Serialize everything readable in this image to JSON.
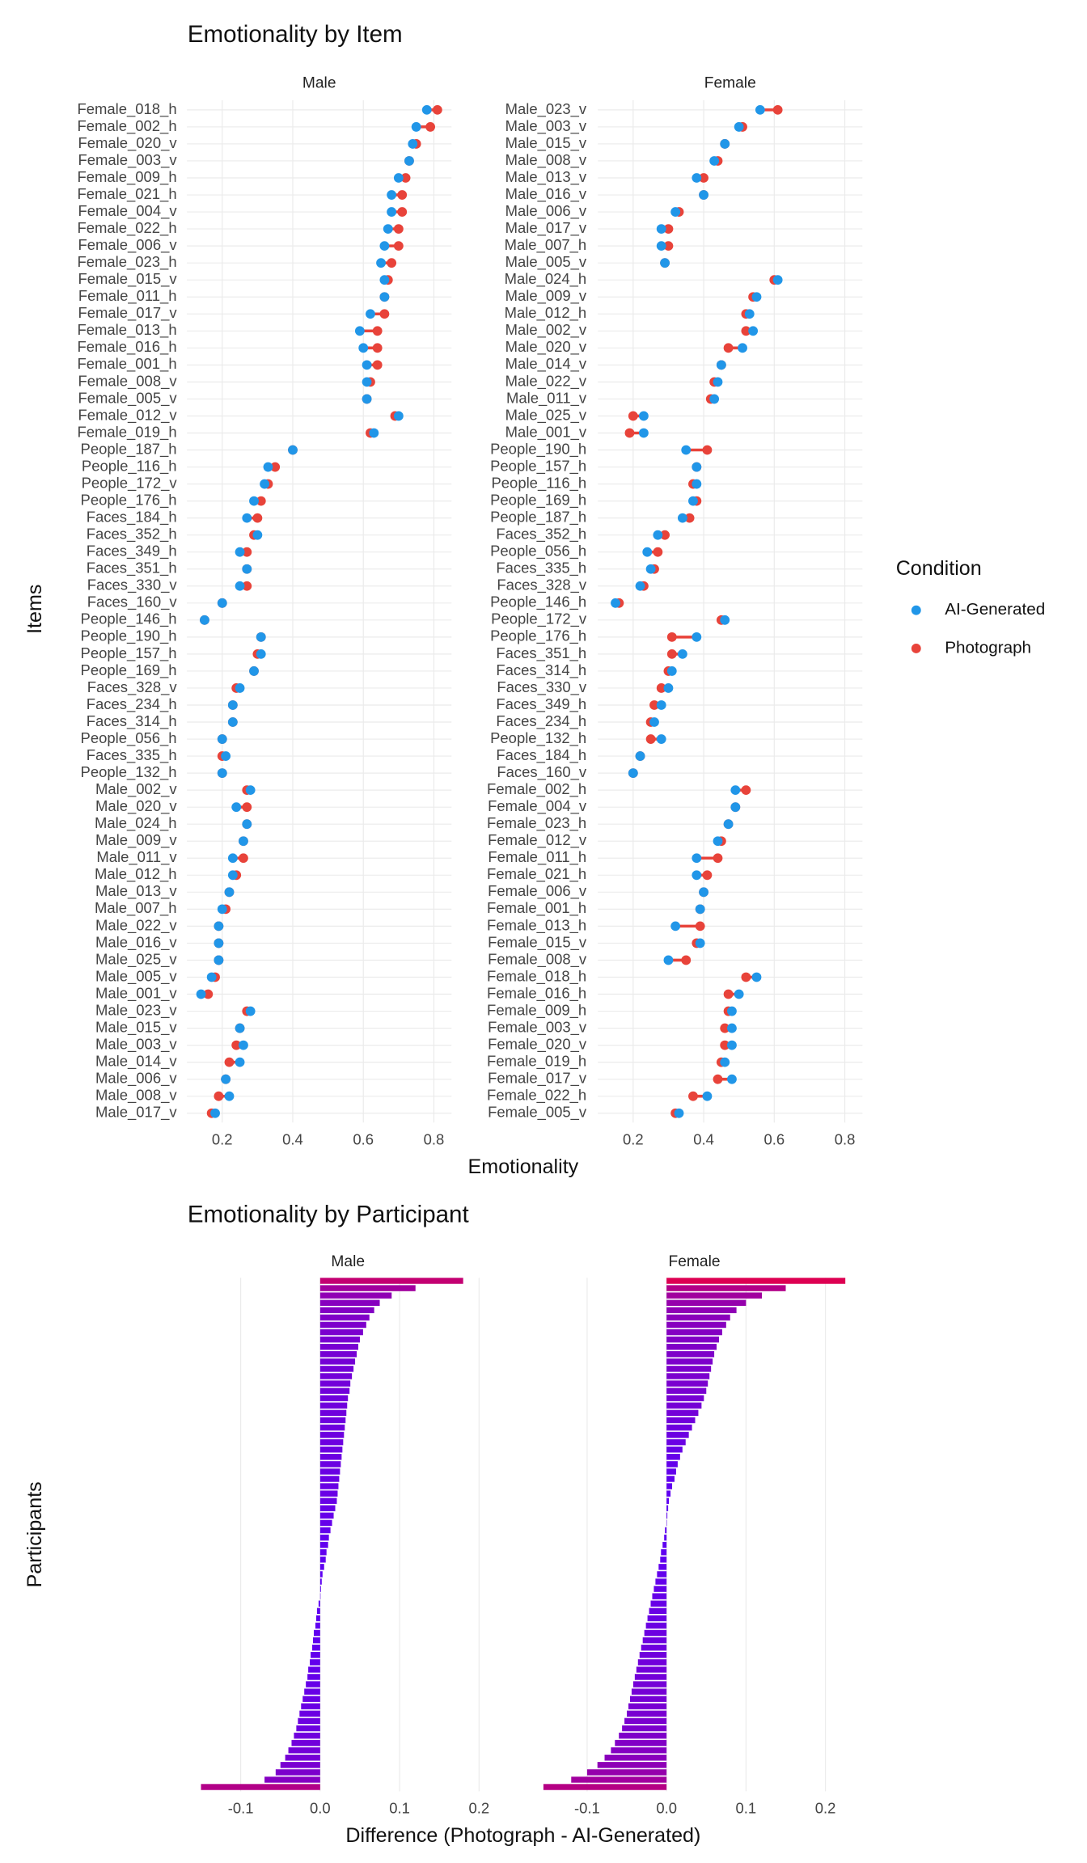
{
  "chart_data": [
    {
      "type": "dumbbell",
      "title": "Emotionality by Item",
      "x_label": "Emotionality",
      "y_label": "Items",
      "legend_title": "Condition",
      "grid": true,
      "xlim": [
        0.1,
        0.85
      ],
      "xticks": [
        0.2,
        0.4,
        0.6,
        0.8
      ],
      "panels": [
        {
          "name": "Male",
          "categories": [
            "Female_018_h",
            "Female_002_h",
            "Female_020_v",
            "Female_003_v",
            "Female_009_h",
            "Female_021_h",
            "Female_004_v",
            "Female_022_h",
            "Female_006_v",
            "Female_023_h",
            "Female_015_v",
            "Female_011_h",
            "Female_017_v",
            "Female_013_h",
            "Female_016_h",
            "Female_001_h",
            "Female_008_v",
            "Female_005_v",
            "Female_012_v",
            "Female_019_h",
            "People_187_h",
            "People_116_h",
            "People_172_v",
            "People_176_h",
            "Faces_184_h",
            "Faces_352_h",
            "Faces_349_h",
            "Faces_351_h",
            "Faces_330_v",
            "Faces_160_v",
            "People_146_h",
            "People_190_h",
            "People_157_h",
            "People_169_h",
            "Faces_328_v",
            "Faces_234_h",
            "Faces_314_h",
            "People_056_h",
            "Faces_335_h",
            "People_132_h",
            "Male_002_v",
            "Male_020_v",
            "Male_024_h",
            "Male_009_v",
            "Male_011_v",
            "Male_012_h",
            "Male_013_v",
            "Male_007_h",
            "Male_022_v",
            "Male_016_v",
            "Male_025_v",
            "Male_005_v",
            "Male_001_v",
            "Male_023_v",
            "Male_015_v",
            "Male_003_v",
            "Male_014_v",
            "Male_006_v",
            "Male_008_v",
            "Male_017_v"
          ],
          "series": [
            {
              "name": "AI-Generated",
              "color": "#2196e8",
              "values": [
                0.78,
                0.75,
                0.74,
                0.73,
                0.7,
                0.68,
                0.68,
                0.67,
                0.66,
                0.65,
                0.66,
                0.66,
                0.62,
                0.59,
                0.6,
                0.61,
                0.61,
                0.61,
                0.7,
                0.63,
                0.4,
                0.33,
                0.32,
                0.29,
                0.27,
                0.3,
                0.25,
                0.27,
                0.25,
                0.2,
                0.15,
                0.31,
                0.31,
                0.29,
                0.25,
                0.23,
                0.23,
                0.2,
                0.21,
                0.2,
                0.28,
                0.24,
                0.27,
                0.26,
                0.23,
                0.23,
                0.22,
                0.2,
                0.19,
                0.19,
                0.19,
                0.17,
                0.14,
                0.28,
                0.25,
                0.26,
                0.25,
                0.21,
                0.22,
                0.18
              ]
            },
            {
              "name": "Photograph",
              "color": "#e8433a",
              "values": [
                0.81,
                0.79,
                0.75,
                0.73,
                0.72,
                0.71,
                0.71,
                0.7,
                0.7,
                0.68,
                0.67,
                0.66,
                0.66,
                0.64,
                0.64,
                0.64,
                0.62,
                0.61,
                0.69,
                0.62,
                0.4,
                0.35,
                0.33,
                0.31,
                0.3,
                0.29,
                0.27,
                0.27,
                0.27,
                0.2,
                0.15,
                0.31,
                0.3,
                0.29,
                0.24,
                0.23,
                0.23,
                0.2,
                0.2,
                0.2,
                0.27,
                0.27,
                0.27,
                0.26,
                0.26,
                0.24,
                0.22,
                0.21,
                0.19,
                0.19,
                0.19,
                0.18,
                0.16,
                0.27,
                0.25,
                0.24,
                0.22,
                0.21,
                0.19,
                0.17
              ]
            }
          ]
        },
        {
          "name": "Female",
          "categories": [
            "Male_023_v",
            "Male_003_v",
            "Male_015_v",
            "Male_008_v",
            "Male_013_v",
            "Male_016_v",
            "Male_006_v",
            "Male_017_v",
            "Male_007_h",
            "Male_005_v",
            "Male_024_h",
            "Male_009_v",
            "Male_012_h",
            "Male_002_v",
            "Male_020_v",
            "Male_014_v",
            "Male_022_v",
            "Male_011_v",
            "Male_025_v",
            "Male_001_v",
            "People_190_h",
            "People_157_h",
            "People_116_h",
            "People_169_h",
            "People_187_h",
            "Faces_352_h",
            "People_056_h",
            "Faces_335_h",
            "Faces_328_v",
            "People_146_h",
            "People_172_v",
            "People_176_h",
            "Faces_351_h",
            "Faces_314_h",
            "Faces_330_v",
            "Faces_349_h",
            "Faces_234_h",
            "People_132_h",
            "Faces_184_h",
            "Faces_160_v",
            "Female_002_h",
            "Female_004_v",
            "Female_023_h",
            "Female_012_v",
            "Female_011_h",
            "Female_021_h",
            "Female_006_v",
            "Female_001_h",
            "Female_013_h",
            "Female_015_v",
            "Female_008_v",
            "Female_018_h",
            "Female_016_h",
            "Female_009_h",
            "Female_003_v",
            "Female_020_v",
            "Female_019_h",
            "Female_017_v",
            "Female_022_h",
            "Female_005_v"
          ],
          "series": [
            {
              "name": "AI-Generated",
              "color": "#2196e8",
              "values": [
                0.56,
                0.5,
                0.46,
                0.43,
                0.38,
                0.4,
                0.32,
                0.28,
                0.28,
                0.29,
                0.61,
                0.55,
                0.53,
                0.54,
                0.51,
                0.45,
                0.44,
                0.43,
                0.23,
                0.23,
                0.35,
                0.38,
                0.38,
                0.37,
                0.34,
                0.27,
                0.24,
                0.25,
                0.22,
                0.15,
                0.46,
                0.38,
                0.34,
                0.31,
                0.3,
                0.28,
                0.26,
                0.28,
                0.22,
                0.2,
                0.49,
                0.49,
                0.47,
                0.44,
                0.38,
                0.38,
                0.4,
                0.39,
                0.32,
                0.39,
                0.3,
                0.55,
                0.5,
                0.48,
                0.48,
                0.48,
                0.46,
                0.48,
                0.41,
                0.33
              ]
            },
            {
              "name": "Photograph",
              "color": "#e8433a",
              "values": [
                0.61,
                0.51,
                0.46,
                0.44,
                0.4,
                0.4,
                0.33,
                0.3,
                0.3,
                0.29,
                0.6,
                0.54,
                0.52,
                0.52,
                0.47,
                0.45,
                0.43,
                0.42,
                0.2,
                0.19,
                0.41,
                0.38,
                0.37,
                0.38,
                0.36,
                0.29,
                0.27,
                0.26,
                0.23,
                0.16,
                0.45,
                0.31,
                0.31,
                0.3,
                0.28,
                0.26,
                0.25,
                0.25,
                0.22,
                0.2,
                0.52,
                0.49,
                0.47,
                0.45,
                0.44,
                0.41,
                0.4,
                0.39,
                0.39,
                0.38,
                0.35,
                0.52,
                0.47,
                0.47,
                0.46,
                0.46,
                0.45,
                0.44,
                0.37,
                0.32
              ]
            }
          ]
        }
      ]
    },
    {
      "type": "diverging_bar",
      "title": "Emotionality by Participant",
      "x_label": "Difference (Photograph - AI-Generated)",
      "y_label": "Participants",
      "grid": true,
      "xlim": [
        -0.16,
        0.23
      ],
      "xticks": [
        -0.1,
        {
          "value": 0,
          "label": "0.0"
        },
        0.1,
        0.2
      ],
      "color_scale": [
        "#5c00f5",
        "#e0004e"
      ],
      "panels": [
        {
          "name": "Male",
          "values": [
            0.18,
            0.12,
            0.09,
            0.075,
            0.068,
            0.062,
            0.058,
            0.054,
            0.05,
            0.048,
            0.046,
            0.044,
            0.042,
            0.04,
            0.038,
            0.037,
            0.035,
            0.034,
            0.033,
            0.032,
            0.031,
            0.03,
            0.029,
            0.028,
            0.027,
            0.026,
            0.025,
            0.024,
            0.023,
            0.022,
            0.021,
            0.019,
            0.017,
            0.015,
            0.013,
            0.011,
            0.01,
            0.008,
            0.007,
            0.005,
            0.003,
            0.002,
            0.001,
            0,
            -0.002,
            -0.004,
            -0.005,
            -0.006,
            -0.008,
            -0.009,
            -0.01,
            -0.012,
            -0.013,
            -0.015,
            -0.016,
            -0.018,
            -0.02,
            -0.022,
            -0.024,
            -0.026,
            -0.028,
            -0.03,
            -0.033,
            -0.036,
            -0.04,
            -0.044,
            -0.05,
            -0.056,
            -0.07,
            -0.15
          ]
        },
        {
          "name": "Female",
          "values": [
            0.225,
            0.15,
            0.12,
            0.1,
            0.088,
            0.08,
            0.075,
            0.07,
            0.066,
            0.063,
            0.06,
            0.058,
            0.056,
            0.054,
            0.052,
            0.05,
            0.047,
            0.044,
            0.04,
            0.036,
            0.032,
            0.028,
            0.024,
            0.02,
            0.017,
            0.014,
            0.012,
            0.01,
            0.007,
            0.005,
            0.003,
            0.002,
            0.001,
            0,
            -0.002,
            -0.003,
            -0.005,
            -0.007,
            -0.008,
            -0.01,
            -0.012,
            -0.014,
            -0.016,
            -0.018,
            -0.02,
            -0.022,
            -0.024,
            -0.026,
            -0.028,
            -0.03,
            -0.032,
            -0.034,
            -0.036,
            -0.038,
            -0.04,
            -0.042,
            -0.044,
            -0.046,
            -0.048,
            -0.05,
            -0.053,
            -0.056,
            -0.06,
            -0.065,
            -0.07,
            -0.078,
            -0.087,
            -0.1,
            -0.12,
            -0.155
          ]
        }
      ]
    }
  ]
}
